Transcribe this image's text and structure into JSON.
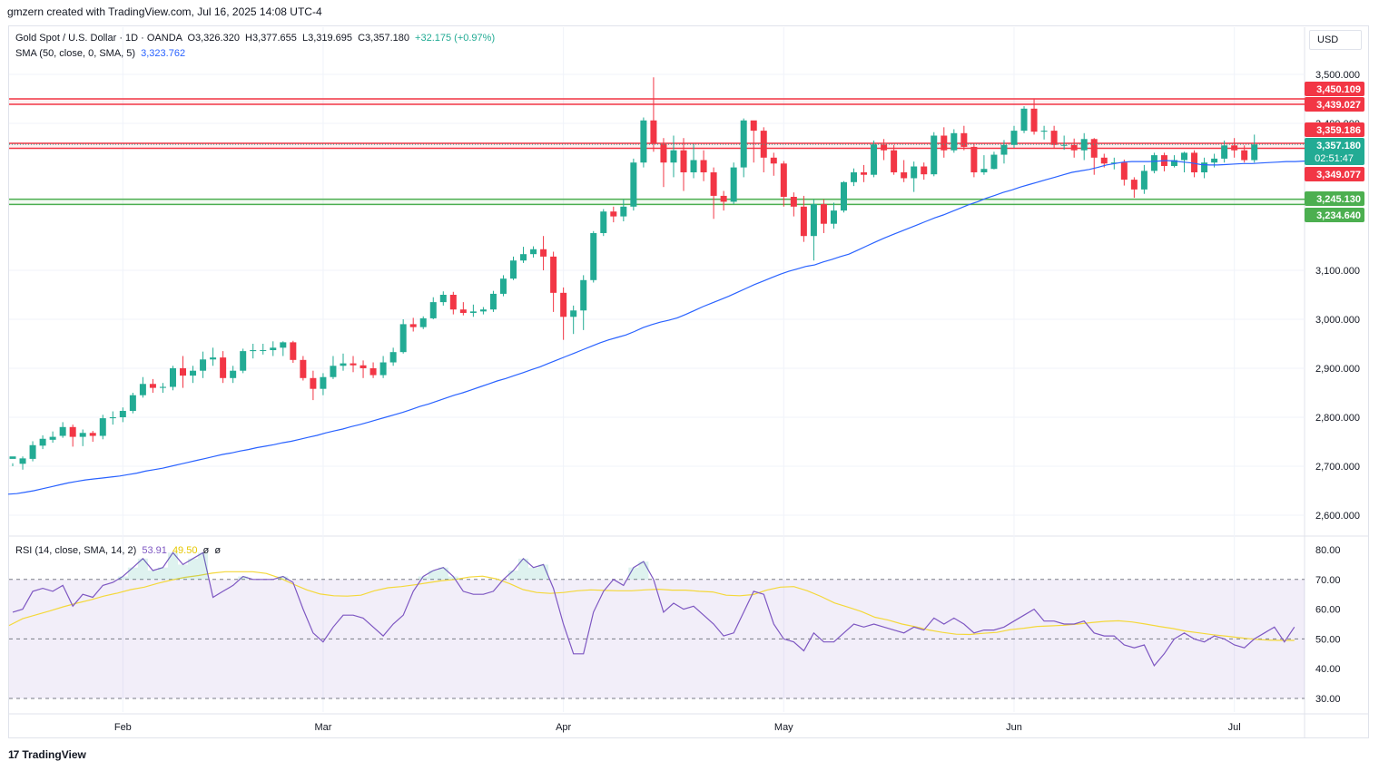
{
  "header": {
    "attribution": "gmzern created with TradingView.com, Jul 16, 2025 14:08 UTC-4"
  },
  "legend": {
    "symbol": "Gold Spot / U.S. Dollar · 1D · OANDA",
    "open": "O3,326.320",
    "high": "H3,377.655",
    "low": "L3,319.695",
    "close": "C3,357.180",
    "change": "+32.175 (+0.97%)",
    "sma_label": "SMA (50, close, 0, SMA, 5)",
    "sma_value": "3,323.762",
    "rsi_label": "RSI (14, close, SMA, 14, 2)",
    "rsi_value": "53.91",
    "rsi_ma_value": "49.50",
    "rsi_extra1": "ø",
    "rsi_extra2": "ø"
  },
  "currency": "USD",
  "brand": "TradingView",
  "colors": {
    "up": "#22ab94",
    "down": "#f23645",
    "sma": "#2962ff",
    "rsi": "#7e57c2",
    "rsi_ma": "#f4d83a",
    "resistance": "#f23645",
    "support": "#4caf50"
  },
  "chart_data": [
    {
      "type": "candlestick",
      "title": "Gold Spot / U.S. Dollar · 1D · OANDA",
      "ylim": [
        2567,
        3540
      ],
      "yticks": [
        "3,500.000",
        "3,400.000",
        "3,100.000",
        "3,000.000",
        "2,900.000",
        "2,800.000",
        "2,700.000",
        "2,600.000"
      ],
      "xticks": [
        "Feb",
        "Mar",
        "Apr",
        "May",
        "Jun",
        "Jul"
      ],
      "candles": [
        [
          2715,
          2720,
          2706,
          2700
        ],
        [
          2705,
          2716,
          2720,
          2693
        ],
        [
          2715,
          2743,
          2751,
          2710
        ],
        [
          2742,
          2756,
          2763,
          2735
        ],
        [
          2754,
          2760,
          2771,
          2748
        ],
        [
          2762,
          2780,
          2790,
          2758
        ],
        [
          2780,
          2760,
          2785,
          2740
        ],
        [
          2760,
          2768,
          2775,
          2741
        ],
        [
          2768,
          2762,
          2772,
          2750
        ],
        [
          2762,
          2798,
          2805,
          2755
        ],
        [
          2798,
          2800,
          2812,
          2785
        ],
        [
          2800,
          2813,
          2820,
          2790
        ],
        [
          2813,
          2845,
          2850,
          2808
        ],
        [
          2845,
          2868,
          2882,
          2840
        ],
        [
          2868,
          2860,
          2878,
          2850
        ],
        [
          2860,
          2862,
          2870,
          2850
        ],
        [
          2862,
          2900,
          2905,
          2855
        ],
        [
          2900,
          2885,
          2925,
          2860
        ],
        [
          2885,
          2895,
          2905,
          2870
        ],
        [
          2895,
          2918,
          2934,
          2880
        ],
        [
          2918,
          2922,
          2942,
          2905
        ],
        [
          2922,
          2880,
          2935,
          2870
        ],
        [
          2880,
          2895,
          2905,
          2870
        ],
        [
          2895,
          2935,
          2940,
          2890
        ],
        [
          2935,
          2937,
          2950,
          2920
        ],
        [
          2937,
          2937,
          2950,
          2928
        ],
        [
          2937,
          2942,
          2955,
          2925
        ],
        [
          2942,
          2953,
          2955,
          2925
        ],
        [
          2953,
          2917,
          2956,
          2911
        ],
        [
          2917,
          2880,
          2925,
          2875
        ],
        [
          2880,
          2858,
          2895,
          2835
        ],
        [
          2858,
          2882,
          2890,
          2845
        ],
        [
          2882,
          2905,
          2925,
          2878
        ],
        [
          2905,
          2910,
          2930,
          2895
        ],
        [
          2910,
          2906,
          2925,
          2892
        ],
        [
          2906,
          2900,
          2916,
          2880
        ],
        [
          2900,
          2886,
          2912,
          2880
        ],
        [
          2886,
          2912,
          2925,
          2880
        ],
        [
          2912,
          2933,
          2942,
          2905
        ],
        [
          2933,
          2990,
          3000,
          2930
        ],
        [
          2990,
          2984,
          3003,
          2975
        ],
        [
          2984,
          3002,
          3006,
          2980
        ],
        [
          3002,
          3035,
          3045,
          3000
        ],
        [
          3035,
          3050,
          3057,
          3028
        ],
        [
          3050,
          3020,
          3056,
          3010
        ],
        [
          3020,
          3013,
          3035,
          3008
        ],
        [
          3013,
          3016,
          3030,
          3005
        ],
        [
          3016,
          3020,
          3025,
          3010
        ],
        [
          3020,
          3052,
          3058,
          3015
        ],
        [
          3052,
          3083,
          3090,
          3047
        ],
        [
          3083,
          3120,
          3128,
          3080
        ],
        [
          3120,
          3133,
          3148,
          3115
        ],
        [
          3133,
          3143,
          3149,
          3126
        ],
        [
          3143,
          3128,
          3170,
          3100
        ],
        [
          3128,
          3054,
          3138,
          3015
        ],
        [
          3054,
          3005,
          3065,
          2958
        ],
        [
          3005,
          3018,
          3028,
          2970
        ],
        [
          3018,
          3080,
          3090,
          2978
        ],
        [
          3080,
          3176,
          3180,
          3075
        ],
        [
          3176,
          3220,
          3225,
          3170
        ],
        [
          3220,
          3210,
          3230,
          3198
        ],
        [
          3210,
          3230,
          3245,
          3200
        ],
        [
          3230,
          3320,
          3328,
          3222
        ],
        [
          3320,
          3406,
          3412,
          3310
        ],
        [
          3406,
          3358,
          3494,
          3342
        ],
        [
          3358,
          3320,
          3370,
          3270
        ],
        [
          3320,
          3345,
          3375,
          3290
        ],
        [
          3345,
          3300,
          3370,
          3262
        ],
        [
          3300,
          3325,
          3358,
          3288
        ],
        [
          3325,
          3300,
          3345,
          3282
        ],
        [
          3300,
          3252,
          3310,
          3205
        ],
        [
          3252,
          3240,
          3262,
          3222
        ],
        [
          3240,
          3310,
          3320,
          3235
        ],
        [
          3310,
          3406,
          3410,
          3290
        ],
        [
          3406,
          3385,
          3398,
          3320
        ],
        [
          3385,
          3330,
          3392,
          3300
        ],
        [
          3330,
          3318,
          3340,
          3293
        ],
        [
          3318,
          3250,
          3323,
          3230
        ],
        [
          3250,
          3230,
          3259,
          3210
        ],
        [
          3230,
          3170,
          3252,
          3158
        ],
        [
          3170,
          3235,
          3245,
          3120
        ],
        [
          3235,
          3195,
          3245,
          3176
        ],
        [
          3195,
          3222,
          3238,
          3185
        ],
        [
          3222,
          3280,
          3282,
          3218
        ],
        [
          3280,
          3300,
          3308,
          3272
        ],
        [
          3300,
          3295,
          3315,
          3280
        ],
        [
          3295,
          3357,
          3365,
          3290
        ],
        [
          3357,
          3345,
          3368,
          3325
        ],
        [
          3345,
          3300,
          3356,
          3295
        ],
        [
          3300,
          3288,
          3325,
          3280
        ],
        [
          3288,
          3312,
          3322,
          3260
        ],
        [
          3312,
          3296,
          3320,
          3285
        ],
        [
          3296,
          3375,
          3382,
          3292
        ],
        [
          3375,
          3345,
          3392,
          3330
        ],
        [
          3345,
          3380,
          3388,
          3340
        ],
        [
          3380,
          3352,
          3395,
          3345
        ],
        [
          3352,
          3300,
          3360,
          3290
        ],
        [
          3300,
          3307,
          3335,
          3295
        ],
        [
          3307,
          3336,
          3342,
          3306
        ],
        [
          3336,
          3356,
          3366,
          3318
        ],
        [
          3356,
          3385,
          3395,
          3350
        ],
        [
          3385,
          3430,
          3435,
          3380
        ],
        [
          3430,
          3383,
          3450,
          3377
        ],
        [
          3383,
          3385,
          3395,
          3367
        ],
        [
          3385,
          3356,
          3395,
          3350
        ],
        [
          3356,
          3356,
          3375,
          3346
        ],
        [
          3356,
          3345,
          3369,
          3330
        ],
        [
          3345,
          3368,
          3380,
          3325
        ],
        [
          3368,
          3330,
          3370,
          3295
        ],
        [
          3330,
          3318,
          3338,
          3310
        ],
        [
          3318,
          3320,
          3330,
          3306
        ],
        [
          3320,
          3285,
          3326,
          3273
        ],
        [
          3285,
          3265,
          3290,
          3248
        ],
        [
          3265,
          3303,
          3315,
          3256
        ],
        [
          3303,
          3335,
          3340,
          3298
        ],
        [
          3335,
          3313,
          3340,
          3302
        ],
        [
          3313,
          3325,
          3335,
          3310
        ],
        [
          3325,
          3340,
          3342,
          3300
        ],
        [
          3340,
          3300,
          3345,
          3290
        ],
        [
          3300,
          3320,
          3330,
          3288
        ],
        [
          3320,
          3328,
          3338,
          3310
        ],
        [
          3328,
          3355,
          3365,
          3320
        ],
        [
          3355,
          3345,
          3370,
          3330
        ],
        [
          3345,
          3325,
          3355,
          3320
        ],
        [
          3325,
          3357,
          3377,
          3320
        ]
      ],
      "sma": [
        2643,
        2644,
        2647,
        2650,
        2654,
        2658,
        2662,
        2666,
        2669,
        2672,
        2674,
        2676,
        2678,
        2680,
        2683,
        2686,
        2690,
        2693,
        2696,
        2700,
        2704,
        2708,
        2712,
        2716,
        2720,
        2724,
        2727,
        2731,
        2734,
        2738,
        2741,
        2744,
        2748,
        2751,
        2755,
        2759,
        2763,
        2768,
        2772,
        2776,
        2781,
        2785,
        2790,
        2795,
        2800,
        2805,
        2810,
        2816,
        2822,
        2827,
        2833,
        2839,
        2845,
        2850,
        2856,
        2862,
        2868,
        2874,
        2879,
        2885,
        2891,
        2897,
        2903,
        2910,
        2917,
        2924,
        2931,
        2938,
        2945,
        2952,
        2958,
        2963,
        2968,
        2975,
        2983,
        2989,
        2994,
        2998,
        3003,
        3010,
        3018,
        3026,
        3033,
        3040,
        3047,
        3055,
        3063,
        3071,
        3078,
        3085,
        3092,
        3098,
        3103,
        3108,
        3111,
        3117,
        3122,
        3128,
        3133,
        3141,
        3149,
        3157,
        3165,
        3172,
        3179,
        3186,
        3193,
        3200,
        3207,
        3213,
        3220,
        3227,
        3234,
        3240,
        3247,
        3253,
        3259,
        3264,
        3270,
        3275,
        3280,
        3285,
        3290,
        3295,
        3300,
        3303,
        3306,
        3310,
        3315,
        3318,
        3321,
        3322,
        3322,
        3322,
        3323,
        3324,
        3323,
        3321,
        3319,
        3316,
        3315,
        3315,
        3316,
        3317,
        3318,
        3318,
        3319,
        3320,
        3321,
        3322,
        3322,
        3323,
        3323,
        3324,
        3324
      ],
      "levels": [
        {
          "label": "3,450.109",
          "value": 3450.1,
          "kind": "resistance"
        },
        {
          "label": "3,439.027",
          "value": 3439.0,
          "kind": "resistance"
        },
        {
          "label": "3,359.186",
          "value": 3359.2,
          "kind": "resistance"
        },
        {
          "label": "3,349.077",
          "value": 3349.1,
          "kind": "resistance"
        },
        {
          "label": "3,245.130",
          "value": 3245.1,
          "kind": "support"
        },
        {
          "label": "3,234.640",
          "value": 3234.6,
          "kind": "support"
        }
      ],
      "last_price": {
        "label": "3,357.180",
        "countdown": "02:51:47",
        "value": 3357.18
      }
    },
    {
      "type": "line",
      "title": "RSI (14, close, SMA, 14, 2)",
      "ylim": [
        26.5,
        84
      ],
      "yticks": [
        "80.00",
        "70.00",
        "60.00",
        "50.00",
        "40.00",
        "30.00"
      ],
      "bands": [
        70,
        50,
        30
      ],
      "rsi": [
        59,
        60,
        66,
        67,
        66,
        68,
        61,
        65,
        64,
        68,
        69,
        71,
        74,
        77,
        73,
        74,
        79,
        75,
        77,
        79,
        64,
        66,
        68,
        71,
        70,
        70,
        70,
        71,
        69,
        60,
        52,
        49,
        54,
        58,
        58,
        57,
        54,
        51,
        55,
        58,
        66,
        71,
        73,
        74,
        71,
        66,
        65,
        65,
        66,
        70,
        73,
        77,
        74,
        75,
        67,
        55,
        45,
        45,
        59,
        66,
        70,
        68,
        74,
        76,
        70,
        59,
        62,
        60,
        61,
        58,
        55,
        51,
        52,
        59,
        66,
        65,
        55,
        50,
        49,
        46,
        52,
        49,
        49,
        52,
        55,
        54,
        55,
        54,
        53,
        52,
        54,
        53,
        57,
        55,
        57,
        55,
        52,
        53,
        53,
        54,
        56,
        58,
        60,
        56,
        56,
        55,
        55,
        56,
        52,
        51,
        51,
        48,
        47,
        48,
        41,
        45,
        50,
        52,
        50,
        49,
        51,
        50,
        48,
        47,
        50,
        52,
        54,
        49,
        54
      ],
      "rsi_ma": [
        54.5,
        56.8,
        58.1,
        59.4,
        60.8,
        62.0,
        63.1,
        64.4,
        65.4,
        66.6,
        67.4,
        68.7,
        69.8,
        70.7,
        71.3,
        72.1,
        72.6,
        72.6,
        72.6,
        72.0,
        70.5,
        68.4,
        66.5,
        65.1,
        64.5,
        64.4,
        64.7,
        66.2,
        67.2,
        67.6,
        68.2,
        68.9,
        69.6,
        70.0,
        70.8,
        71.1,
        70.2,
        68.6,
        66.6,
        65.6,
        65.3,
        65.6,
        66.2,
        66.5,
        66.3,
        66.2,
        66.2,
        66.5,
        66.7,
        66.4,
        66.4,
        66.0,
        65.8,
        64.7,
        64.5,
        64.9,
        66.4,
        67.4,
        67.6,
        66.2,
        64.3,
        62.1,
        60.7,
        59.2,
        57.3,
        56.3,
        55.0,
        54.1,
        53.0,
        52.2,
        51.6,
        51.5,
        51.9,
        52.2,
        53.1,
        53.6,
        54.2,
        54.4,
        54.6,
        55.0,
        55.5,
        55.9,
        56.1,
        55.7,
        55.0,
        54.2,
        53.5,
        52.6,
        52.0,
        51.4,
        50.9,
        50.4,
        49.9,
        49.6,
        49.5,
        49.5
      ]
    }
  ]
}
